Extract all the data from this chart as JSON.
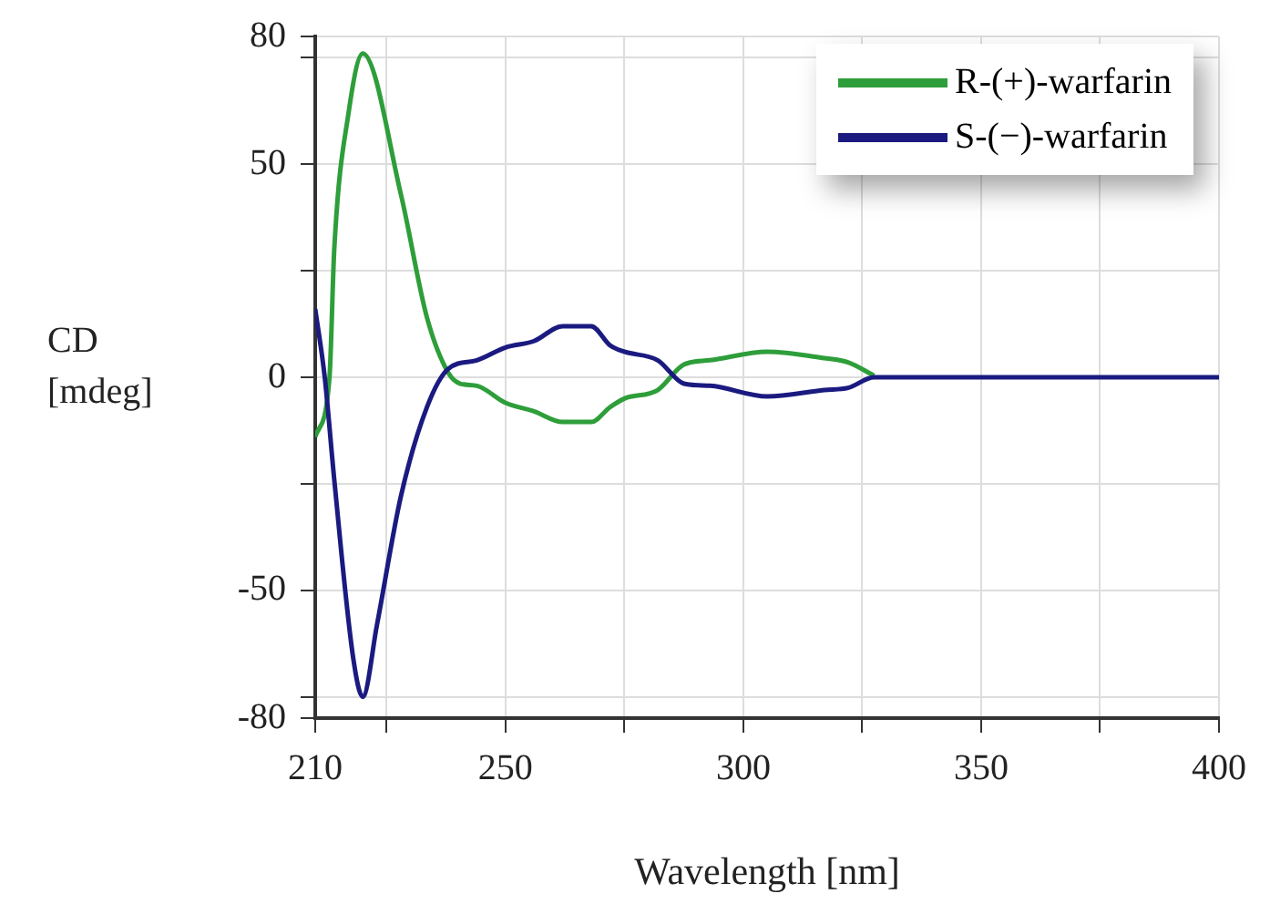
{
  "chart_data": {
    "type": "line",
    "xlabel": "Wavelength [nm]",
    "ylabel": "CD [mdeg]",
    "xlim": [
      210,
      400
    ],
    "ylim": [
      -80,
      80
    ],
    "xticks": [
      210,
      {
        "value": 225,
        "label": null
      },
      250,
      {
        "value": 275,
        "label": null
      },
      300,
      {
        "value": 325,
        "label": null
      },
      350,
      {
        "value": 375,
        "label": null
      },
      400
    ],
    "yticks": [
      -80,
      {
        "value": -75,
        "label": null
      },
      -50,
      {
        "value": -25,
        "label": null
      },
      0,
      {
        "value": 25,
        "label": null
      },
      50,
      {
        "value": 75,
        "label": null
      },
      80
    ],
    "grid": true,
    "legend": "top right",
    "series": [
      {
        "name": "R-(+)-warfarin",
        "color": "#2e9e3a",
        "x": [
          210,
          213,
          214,
          217,
          220,
          228,
          233.5,
          238,
          240.5,
          244,
          250,
          256,
          262,
          268,
          272,
          275,
          282,
          287.5,
          293,
          305,
          317,
          322,
          327.5
        ],
        "values": [
          -14,
          0,
          30,
          62,
          76,
          43,
          14,
          1,
          -1.5,
          -2,
          -6,
          -8,
          -10.5,
          -10.5,
          -7,
          -5,
          -3,
          3,
          4,
          6,
          4.5,
          3.5,
          0.4
        ]
      },
      {
        "name": "S-(−)-warfarin",
        "color": "#1a1a80",
        "x": [
          210,
          212,
          214,
          218,
          220,
          223,
          228,
          233.5,
          238,
          244,
          250,
          256,
          262,
          268,
          272,
          275,
          282,
          287.5,
          293,
          305,
          317,
          322,
          327.5,
          335,
          350,
          375,
          400
        ],
        "values": [
          16,
          0,
          -24,
          -66,
          -75,
          -58,
          -28,
          -7,
          2,
          4,
          7,
          8.5,
          12,
          12,
          7.5,
          6,
          4,
          -1.5,
          -2,
          -4.5,
          -3,
          -2.5,
          0,
          0,
          0,
          0,
          0
        ]
      }
    ]
  }
}
